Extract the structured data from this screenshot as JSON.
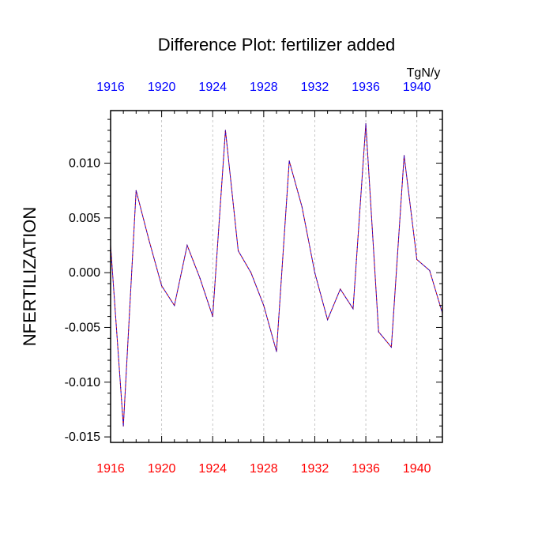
{
  "chart_data": {
    "type": "line",
    "title": "Difference Plot: fertilizer added",
    "units": "TgN/y",
    "ylabel": "NFERTILIZATION",
    "xlabel": "",
    "xlim": [
      1916,
      1942
    ],
    "ylim": [
      -0.0155,
      0.0148
    ],
    "x_ticks": [
      1916,
      1920,
      1924,
      1928,
      1932,
      1936,
      1940
    ],
    "x_tick_labels": [
      "1916",
      "1920",
      "1924",
      "1928",
      "1932",
      "1936",
      "1940"
    ],
    "y_ticks": [
      -0.015,
      -0.01,
      -0.005,
      0.0,
      0.005,
      0.01
    ],
    "y_tick_labels": [
      "-0.015",
      "-0.010",
      "-0.005",
      "0.000",
      "0.005",
      "0.010"
    ],
    "grid": "vertical dashed at major x ticks",
    "bottom_axis_color": "#ff0000",
    "top_axis_color": "#0000ff",
    "series": [
      {
        "color": "#4b0082",
        "dash": true,
        "x": [
          1916,
          1917,
          1918,
          1919,
          1920,
          1921,
          1922,
          1923,
          1924,
          1925,
          1926,
          1927,
          1928,
          1929,
          1930,
          1931,
          1932,
          1933,
          1934,
          1935,
          1936,
          1937,
          1938,
          1939,
          1940,
          1941,
          1942
        ],
        "values": [
          0.0025,
          -0.014,
          0.0075,
          0.003,
          -0.0012,
          -0.003,
          0.0025,
          -0.0005,
          -0.004,
          0.013,
          0.002,
          0.0,
          -0.003,
          -0.0072,
          0.0102,
          0.006,
          0.0,
          -0.0043,
          -0.0015,
          -0.0033,
          0.0136,
          -0.0054,
          -0.0068,
          0.0107,
          0.0012,
          0.0002,
          -0.0037
        ]
      }
    ]
  }
}
